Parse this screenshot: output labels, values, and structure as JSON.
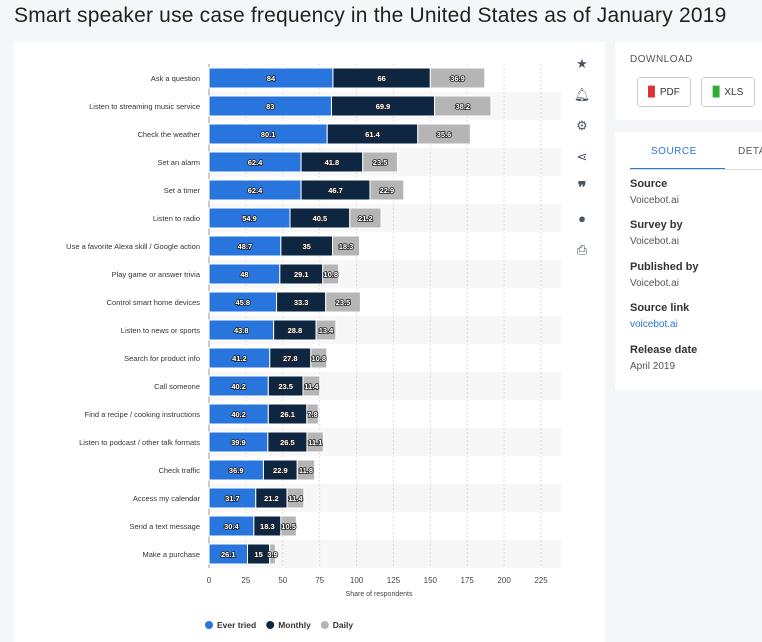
{
  "title": "Smart speaker use case frequency in the United States as of January 2019",
  "tools": [
    "star-icon",
    "bell-icon",
    "gear-icon",
    "share-icon",
    "quote-icon",
    "comment-icon",
    "print-icon"
  ],
  "download": {
    "heading": "DOWNLOAD",
    "pdf": "PDF",
    "xls": "XLS"
  },
  "source_panel": {
    "tab_source": "SOURCE",
    "tab_details": "DETA",
    "source_label": "Source",
    "source": "Voicebot.ai",
    "survey_label": "Survey by",
    "survey": "Voicebot.ai",
    "published_label": "Published by",
    "published": "Voicebot.ai",
    "link_label": "Source link",
    "link": "voicebot.ai",
    "release_label": "Release date",
    "release": "April 2019"
  },
  "chart_data": {
    "type": "bar",
    "orientation": "horizontal",
    "stacked": true,
    "title": "Smart speaker use case frequency in the United States as of January 2019",
    "xlabel": "Share of respondents",
    "xlim": [
      0,
      225
    ],
    "xticks": [
      0,
      25,
      50,
      75,
      100,
      125,
      150,
      175,
      200,
      225
    ],
    "grid": true,
    "legend": "bottom",
    "categories": [
      "Ask a question",
      "Listen to streaming music service",
      "Check the weather",
      "Set an alarm",
      "Set a timer",
      "Listen to radio",
      "Use a favorite Alexa skill / Google action",
      "Play game or answer trivia",
      "Control smart home devices",
      "Listen to news or sports",
      "Search for product info",
      "Call someone",
      "Find a recipe / cooking instructions",
      "Listen to podcast / other talk formats",
      "Check traffic",
      "Access my calendar",
      "Send a text message",
      "Make a purchase"
    ],
    "series": [
      {
        "name": "Ever tried",
        "color": "#2876dd",
        "values": [
          84,
          83,
          80.1,
          62.4,
          62.4,
          54.9,
          48.7,
          48,
          45.8,
          43.8,
          41.2,
          40.2,
          40.2,
          39.9,
          36.9,
          31.7,
          30.4,
          26.1
        ]
      },
      {
        "name": "Monthly",
        "color": "#0f2640",
        "values": [
          66,
          69.9,
          61.4,
          41.8,
          46.7,
          40.5,
          35,
          29.1,
          33.3,
          28.8,
          27.8,
          23.5,
          26.1,
          26.5,
          22.9,
          21.2,
          18.3,
          15
        ]
      },
      {
        "name": "Daily",
        "color": "#b5b5b5",
        "values": [
          36.9,
          38.2,
          35.6,
          23.5,
          22.9,
          21.2,
          18.3,
          10.8,
          23.5,
          13.4,
          10.8,
          11.4,
          7.8,
          11.1,
          11.8,
          11.4,
          10.5,
          3.9
        ]
      }
    ]
  }
}
